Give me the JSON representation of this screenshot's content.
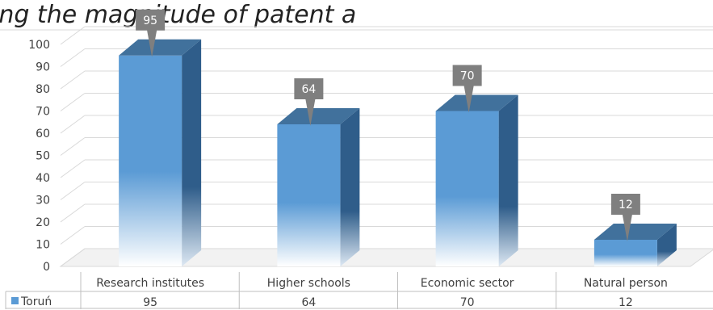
{
  "chart_data": {
    "type": "bar",
    "title": "ing the magnitude of patent a",
    "categories": [
      "Research institutes",
      "Higher schools",
      "Economic sector",
      "Natural person"
    ],
    "series": [
      {
        "name": "Toruń",
        "values": [
          95,
          64,
          70,
          12
        ]
      }
    ],
    "ylim": [
      0,
      100
    ],
    "yticks": [
      "0",
      "10",
      "20",
      "30",
      "40",
      "50",
      "60",
      "70",
      "80",
      "90",
      "100"
    ],
    "grid": true,
    "legend_position": "bottom-left data table",
    "data_labels": [
      "95",
      "64",
      "70",
      "12"
    ],
    "colors": {
      "bar_front": "#5b9bd5",
      "bar_side": "#2e5f8a",
      "bar_top": "#41719c",
      "callout": "#7f7f7f"
    }
  }
}
